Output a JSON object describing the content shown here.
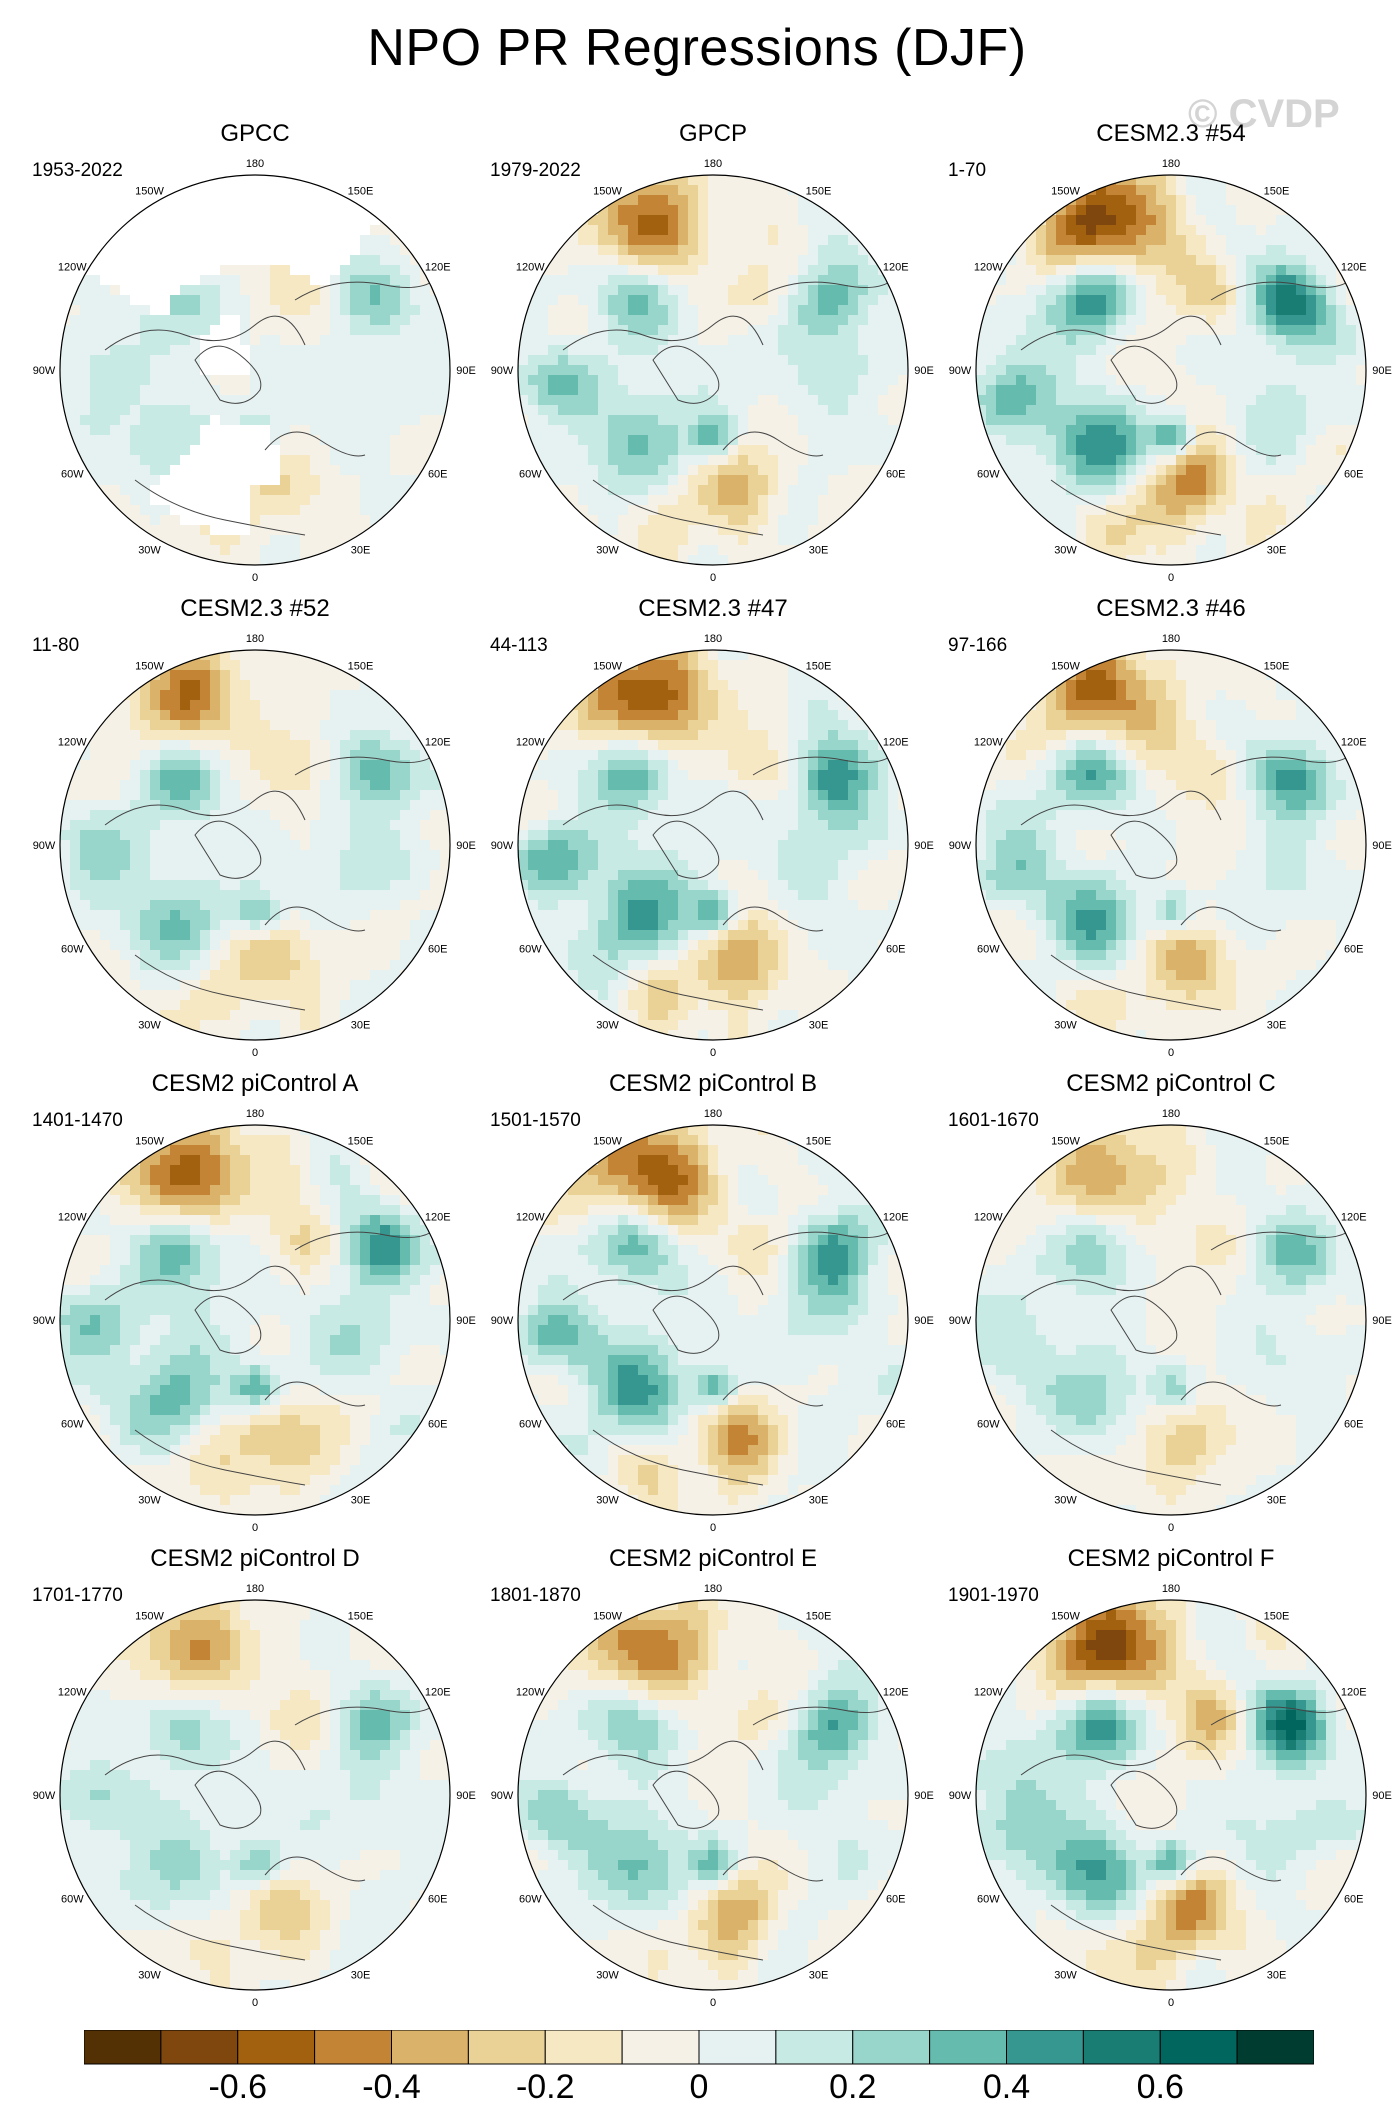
{
  "title": "NPO PR Regressions (DJF)",
  "watermark": "© CVDP",
  "panels": [
    {
      "title": "GPCC",
      "years": "1953-2022",
      "missing_land_mask": true
    },
    {
      "title": "GPCP",
      "years": "1979-2022"
    },
    {
      "title": "CESM2.3 #54",
      "years": "1-70"
    },
    {
      "title": "CESM2.3 #52",
      "years": "11-80"
    },
    {
      "title": "CESM2.3 #47",
      "years": "44-113"
    },
    {
      "title": "CESM2.3 #46",
      "years": "97-166"
    },
    {
      "title": "CESM2 piControl A",
      "years": "1401-1470"
    },
    {
      "title": "CESM2 piControl B",
      "years": "1501-1570"
    },
    {
      "title": "CESM2 piControl C",
      "years": "1601-1670"
    },
    {
      "title": "CESM2 piControl D",
      "years": "1701-1770"
    },
    {
      "title": "CESM2 piControl E",
      "years": "1801-1870"
    },
    {
      "title": "CESM2 piControl F",
      "years": "1901-1970"
    }
  ],
  "longitude_labels": {
    "180": "180",
    "150E": "150E",
    "120E": "120E",
    "90E": "90E",
    "60E": "60E",
    "30E": "30E",
    "0": "0",
    "30W": "30W",
    "60W": "60W",
    "90W": "90W",
    "120W": "120W",
    "150W": "150W"
  },
  "colorbar": {
    "colors": [
      "#543005",
      "#7f470e",
      "#a1610f",
      "#c48436",
      "#dbb26a",
      "#ead296",
      "#f6e8c3",
      "#f5f1e6",
      "#e6f2f1",
      "#c7eae5",
      "#98d6cb",
      "#65bcae",
      "#35978f",
      "#1a7d73",
      "#01665e",
      "#003c30"
    ],
    "labels": [
      "-0.6",
      "-0.4",
      "-0.2",
      "0",
      "0.2",
      "0.4",
      "0.6"
    ]
  },
  "chart_data": {
    "type": "heatmap",
    "title": "NPO PR Regressions (DJF)",
    "projection": "north-polar-stereographic",
    "variable": "precipitation regression onto NPO index",
    "scale_min": -0.8,
    "scale_max": 0.8,
    "contour_interval": 0.1,
    "colorbar_ticks": [
      -0.6,
      -0.4,
      -0.2,
      0,
      0.2,
      0.4,
      0.6
    ],
    "panel_strengths": [
      0.5,
      0.75,
      1.0,
      0.7,
      0.95,
      0.8,
      0.85,
      0.9,
      0.6,
      0.6,
      0.75,
      1.0
    ]
  }
}
